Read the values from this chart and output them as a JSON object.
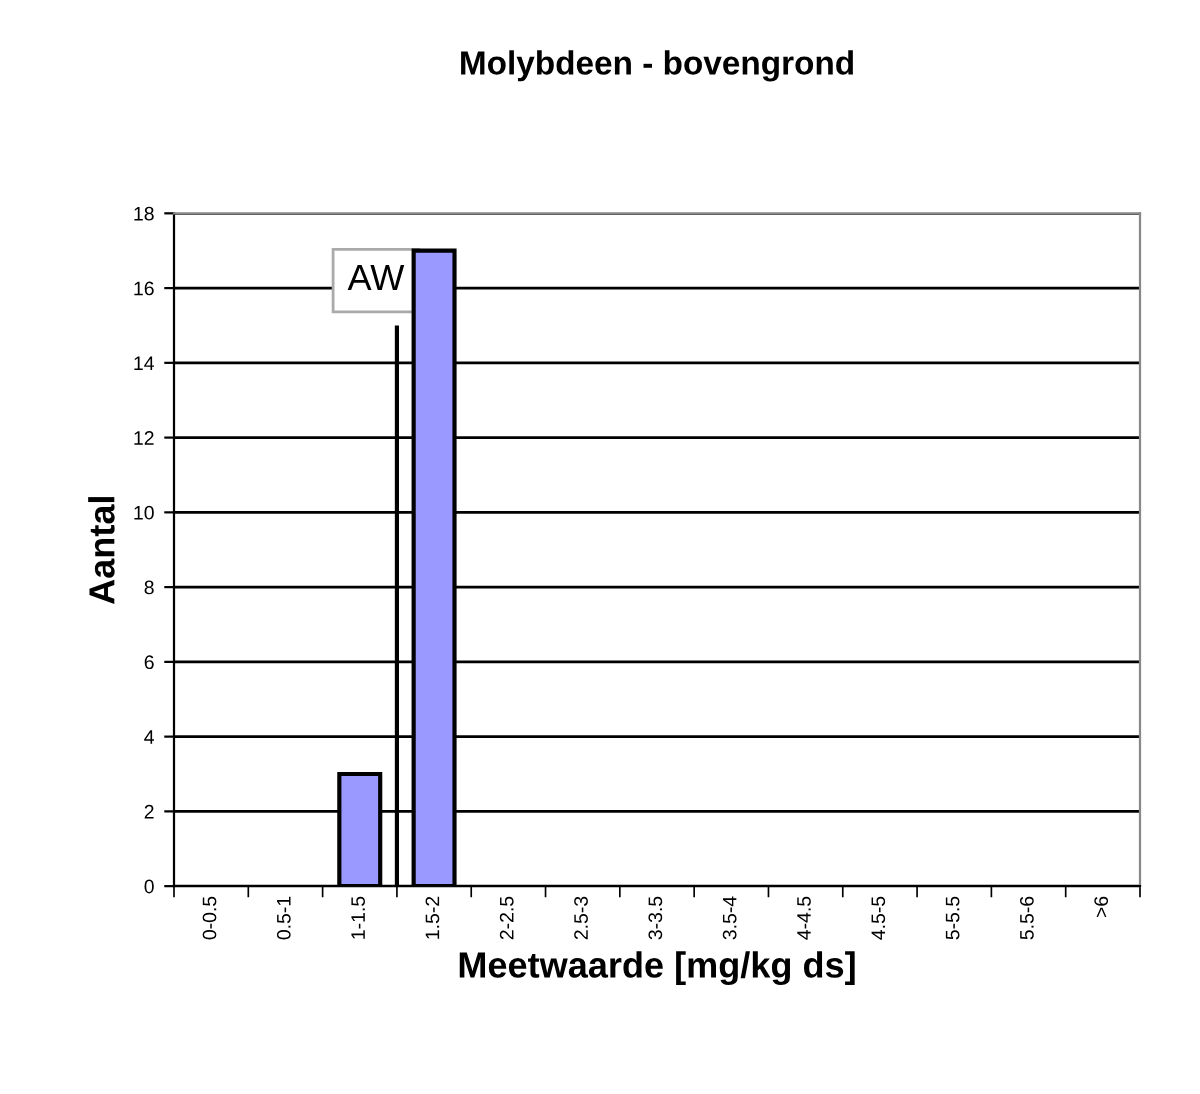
{
  "chart_data": {
    "type": "bar",
    "title": "Molybdeen - bovengrond",
    "xlabel": "Meetwaarde [mg/kg ds]",
    "ylabel": "Aantal",
    "categories": [
      "0-0.5",
      "0.5-1",
      "1-1.5",
      "1.5-2",
      "2-2.5",
      "2.5-3",
      "3-3.5",
      "3.5-4",
      "4-4.5",
      "4.5-5",
      "5-5.5",
      "5.5-6",
      ">6"
    ],
    "values": [
      0,
      0,
      3,
      17,
      0,
      0,
      0,
      0,
      0,
      0,
      0,
      0,
      0
    ],
    "color": "#9999ff",
    "ylim": [
      0,
      18
    ],
    "yticks": [
      0,
      2,
      4,
      6,
      8,
      10,
      12,
      14,
      16,
      18
    ],
    "grid": "y",
    "ref_lines": [
      {
        "axis": "x",
        "value": "1.5-2",
        "label": "AW"
      }
    ]
  }
}
